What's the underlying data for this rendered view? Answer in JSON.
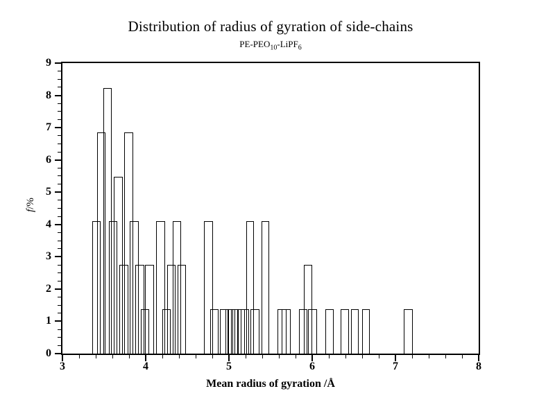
{
  "title": "Distribution of radius of gyration of side-chains",
  "subtitle": {
    "p1": "PE-PEO",
    "sub1": "10",
    "p2": "-LiPF",
    "sub2": "6"
  },
  "axes": {
    "ylabel_f": "f",
    "ylabel_rest": "/%"
  },
  "colors": {
    "stroke": "#000000",
    "background": "#ffffff"
  },
  "chart_data": {
    "type": "bar",
    "title": "Distribution of radius of gyration of side-chains",
    "subtitle": "PE-PEO10-LiPF6",
    "xlabel": "Mean radius of gyration /Å",
    "ylabel": "f/%",
    "xlim": [
      3,
      8
    ],
    "ylim": [
      0,
      9
    ],
    "grid": false,
    "legend": "none",
    "x_major_tick_step": 1,
    "x_minor_tick_step": 0.2,
    "y_major_tick_step": 1,
    "y_minor_tick_step": 0.25,
    "x_tick_labels": [
      "3",
      "4",
      "5",
      "6",
      "7",
      "8"
    ],
    "y_tick_labels": [
      "0",
      "1",
      "2",
      "3",
      "4",
      "5",
      "6",
      "7",
      "8",
      "9"
    ],
    "bar_style": "unfilled outline, overlapping",
    "value_unit": "% frequency",
    "bars": [
      [
        3.355,
        3.46,
        4.11
      ],
      [
        3.415,
        3.52,
        6.85
      ],
      [
        3.49,
        3.595,
        8.22
      ],
      [
        3.555,
        3.66,
        4.11
      ],
      [
        3.62,
        3.725,
        5.48
      ],
      [
        3.685,
        3.79,
        2.74
      ],
      [
        3.745,
        3.85,
        6.85
      ],
      [
        3.81,
        3.915,
        4.11
      ],
      [
        3.875,
        3.98,
        2.74
      ],
      [
        3.94,
        4.045,
        1.37
      ],
      [
        3.995,
        4.1,
        2.74
      ],
      [
        4.128,
        4.233,
        4.11
      ],
      [
        4.197,
        4.302,
        1.37
      ],
      [
        4.255,
        4.36,
        2.74
      ],
      [
        4.322,
        4.427,
        4.11
      ],
      [
        4.38,
        4.485,
        2.74
      ],
      [
        4.7,
        4.805,
        4.11
      ],
      [
        4.772,
        4.875,
        1.37
      ],
      [
        4.894,
        4.994,
        1.37
      ],
      [
        4.958,
        5.05,
        1.37
      ],
      [
        4.994,
        5.078,
        1.37
      ],
      [
        5.022,
        5.106,
        1.37
      ],
      [
        5.106,
        5.194,
        1.37
      ],
      [
        5.14,
        5.245,
        1.37
      ],
      [
        5.211,
        5.303,
        4.11
      ],
      [
        5.262,
        5.367,
        1.37
      ],
      [
        5.39,
        5.483,
        4.11
      ],
      [
        5.585,
        5.69,
        1.37
      ],
      [
        5.635,
        5.74,
        1.37
      ],
      [
        5.84,
        5.945,
        1.37
      ],
      [
        5.903,
        6.0,
        2.74
      ],
      [
        5.953,
        6.058,
        1.37
      ],
      [
        6.16,
        6.26,
        1.37
      ],
      [
        6.34,
        6.44,
        1.37
      ],
      [
        6.465,
        6.557,
        1.37
      ],
      [
        6.597,
        6.695,
        1.37
      ],
      [
        7.1,
        7.208,
        1.37
      ]
    ]
  }
}
